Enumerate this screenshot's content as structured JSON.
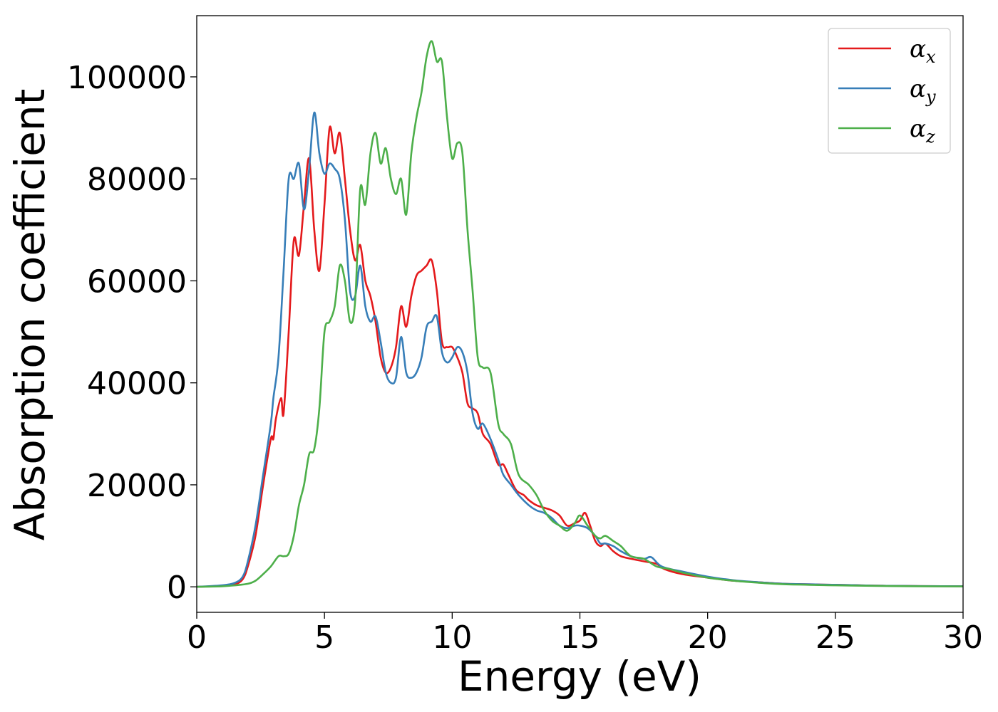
{
  "chart_data": {
    "type": "line",
    "title": "",
    "xlabel": "Energy (eV)",
    "ylabel": "Absorption coefficient",
    "xlim": [
      0,
      30
    ],
    "ylim": [
      -5000,
      112000
    ],
    "xticks": [
      0,
      5,
      10,
      15,
      20,
      25,
      30
    ],
    "xtick_labels": [
      "0",
      "5",
      "10",
      "15",
      "20",
      "25",
      "30"
    ],
    "yticks": [
      0,
      20000,
      40000,
      60000,
      80000,
      100000
    ],
    "ytick_labels": [
      "0",
      "20000",
      "40000",
      "60000",
      "80000",
      "100000"
    ],
    "grid": false,
    "legend_position": "top-right",
    "series": [
      {
        "name": "α_x",
        "legend_symbol": "α",
        "legend_subscript": "x",
        "color": "#e41a1c",
        "x": [
          0,
          1,
          1.5,
          1.8,
          2.0,
          2.3,
          2.6,
          2.9,
          3.0,
          3.1,
          3.3,
          3.4,
          3.6,
          3.8,
          4.0,
          4.2,
          4.4,
          4.6,
          4.8,
          5.0,
          5.2,
          5.4,
          5.6,
          5.8,
          6.0,
          6.2,
          6.4,
          6.6,
          6.8,
          7.0,
          7.2,
          7.4,
          7.6,
          7.8,
          8.0,
          8.2,
          8.4,
          8.6,
          8.8,
          9.0,
          9.2,
          9.4,
          9.6,
          9.8,
          10.0,
          10.2,
          10.4,
          10.6,
          10.8,
          11.0,
          11.2,
          11.5,
          11.8,
          12.0,
          12.2,
          12.5,
          12.8,
          13.0,
          13.3,
          13.6,
          13.9,
          14.2,
          14.5,
          14.8,
          15.0,
          15.2,
          15.4,
          15.6,
          15.8,
          16.0,
          16.3,
          16.6,
          17.0,
          17.5,
          18.0,
          18.3,
          19.0,
          20.0,
          21.0,
          22.0,
          23.0,
          25.0,
          27.0,
          30.0
        ],
        "values": [
          0,
          200,
          500,
          1500,
          4000,
          10000,
          20000,
          29000,
          29000,
          33000,
          37000,
          34000,
          50000,
          68000,
          65000,
          75000,
          84000,
          70000,
          62000,
          75000,
          90000,
          85000,
          89000,
          80000,
          70000,
          64000,
          67000,
          60000,
          57000,
          52000,
          45000,
          42000,
          43000,
          47000,
          55000,
          51000,
          57000,
          61000,
          62000,
          63000,
          64000,
          58000,
          48000,
          47000,
          47000,
          45000,
          42000,
          36000,
          35000,
          34000,
          30000,
          28000,
          24000,
          24000,
          22000,
          19000,
          18000,
          17000,
          16000,
          15500,
          15000,
          14000,
          12000,
          12500,
          13000,
          14500,
          12000,
          9000,
          8000,
          8500,
          7000,
          6000,
          5500,
          5000,
          4500,
          3500,
          2500,
          1800,
          1200,
          900,
          600,
          400,
          200,
          100
        ]
      },
      {
        "name": "α_y",
        "legend_symbol": "α",
        "legend_subscript": "y",
        "color": "#377eb8",
        "x": [
          0,
          1,
          1.5,
          1.8,
          2.0,
          2.3,
          2.6,
          2.9,
          3.0,
          3.2,
          3.4,
          3.6,
          3.8,
          4.0,
          4.2,
          4.4,
          4.6,
          4.8,
          5.0,
          5.2,
          5.4,
          5.6,
          5.8,
          6.0,
          6.2,
          6.4,
          6.6,
          6.8,
          7.0,
          7.2,
          7.4,
          7.6,
          7.8,
          8.0,
          8.2,
          8.4,
          8.6,
          8.8,
          9.0,
          9.2,
          9.4,
          9.6,
          9.8,
          10.0,
          10.2,
          10.4,
          10.6,
          10.8,
          11.0,
          11.2,
          11.5,
          11.8,
          12.0,
          12.3,
          12.6,
          13.0,
          13.3,
          13.6,
          13.9,
          14.2,
          14.5,
          14.8,
          15.0,
          15.3,
          15.6,
          15.8,
          16.0,
          16.3,
          16.6,
          17.0,
          17.5,
          17.8,
          18.2,
          19.0,
          20.0,
          21.0,
          22.0,
          23.0,
          25.0,
          27.0,
          30.0
        ],
        "values": [
          0,
          300,
          800,
          2000,
          5000,
          12000,
          22000,
          32000,
          37000,
          45000,
          62000,
          80000,
          80000,
          83000,
          74000,
          82000,
          93000,
          85000,
          81000,
          83000,
          82000,
          80000,
          72000,
          58000,
          57000,
          63000,
          55000,
          52000,
          53000,
          48000,
          42000,
          40000,
          41000,
          49000,
          42000,
          41000,
          42000,
          45000,
          51000,
          52000,
          53000,
          46000,
          44000,
          45000,
          47000,
          46000,
          42000,
          34000,
          31000,
          32000,
          29000,
          25000,
          22000,
          20000,
          18000,
          16000,
          15000,
          14500,
          13500,
          12000,
          11500,
          12000,
          12000,
          11500,
          10000,
          8500,
          8500,
          8000,
          7000,
          6000,
          5500,
          5800,
          4000,
          3000,
          2000,
          1300,
          900,
          600,
          400,
          200,
          100
        ]
      },
      {
        "name": "α_z",
        "legend_symbol": "α",
        "legend_subscript": "z",
        "color": "#4daf4a",
        "x": [
          0,
          1,
          1.5,
          2.0,
          2.3,
          2.6,
          2.9,
          3.2,
          3.4,
          3.6,
          3.8,
          4.0,
          4.2,
          4.4,
          4.6,
          4.8,
          5.0,
          5.2,
          5.4,
          5.6,
          5.8,
          6.0,
          6.2,
          6.4,
          6.6,
          6.8,
          7.0,
          7.2,
          7.4,
          7.6,
          7.8,
          8.0,
          8.2,
          8.4,
          8.6,
          8.8,
          9.0,
          9.2,
          9.4,
          9.6,
          9.8,
          10.0,
          10.2,
          10.4,
          10.6,
          10.8,
          11.0,
          11.2,
          11.5,
          11.8,
          12.0,
          12.3,
          12.6,
          13.0,
          13.3,
          13.6,
          13.9,
          14.2,
          14.5,
          14.8,
          15.0,
          15.3,
          15.6,
          15.8,
          16.0,
          16.3,
          16.6,
          17.0,
          17.5,
          18.0,
          18.5,
          19.0,
          20.0,
          21.0,
          22.0,
          23.0,
          25.0,
          27.0,
          30.0
        ],
        "values": [
          0,
          100,
          300,
          600,
          1200,
          2500,
          4000,
          6000,
          6000,
          6500,
          10000,
          16000,
          20000,
          26000,
          27000,
          35000,
          50000,
          52000,
          55000,
          63000,
          60000,
          52000,
          56000,
          78000,
          75000,
          85000,
          89000,
          83000,
          86000,
          80000,
          77000,
          80000,
          73000,
          85000,
          92000,
          97000,
          104000,
          107000,
          103000,
          103000,
          92000,
          84000,
          87000,
          85000,
          70000,
          58000,
          45000,
          43000,
          42000,
          32000,
          30000,
          28000,
          22000,
          20000,
          18000,
          15000,
          13000,
          12000,
          11000,
          12500,
          14000,
          12000,
          10000,
          9500,
          10000,
          9000,
          8000,
          6000,
          5500,
          4000,
          3500,
          2800,
          1800,
          1200,
          800,
          500,
          300,
          150,
          80
        ]
      }
    ]
  }
}
